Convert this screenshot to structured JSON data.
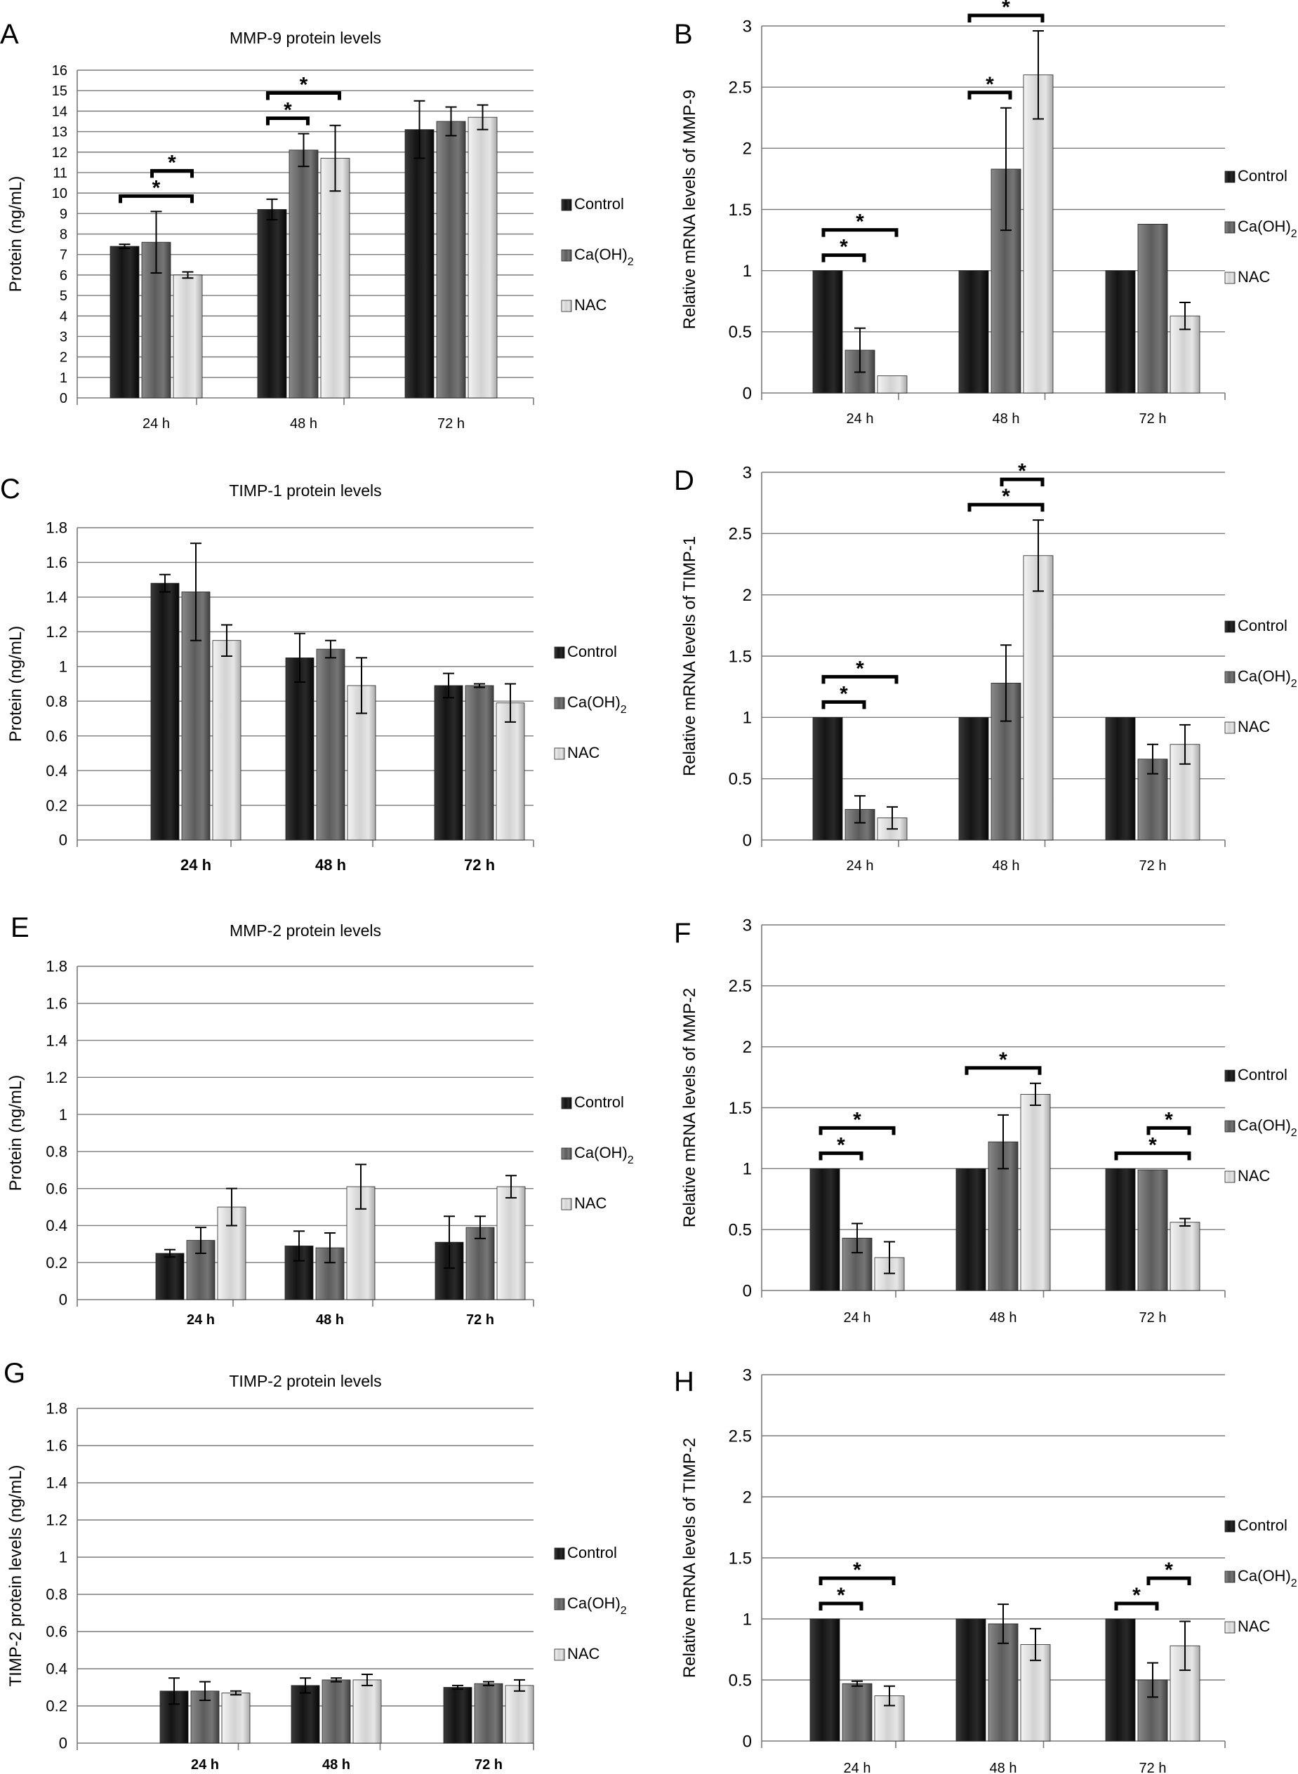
{
  "colors": {
    "Control": "#1f1f1f",
    "Ca(OH)2": "#6e6e6e",
    "NAC": "#d4d4d4",
    "grid": "#7a7a7a"
  },
  "icons": {
    "legend_swatch": "square-swatch-icon",
    "significance": "bracket-asterisk-icon"
  },
  "chart_data": [
    {
      "panel": "A",
      "type": "bar",
      "title": "MMP-9 protein levels",
      "xlabel": "",
      "ylabel": "Protein (ng/mL)",
      "ylim": [
        0,
        16
      ],
      "yticks": [
        "0",
        "1",
        "2",
        "3",
        "4",
        "5",
        "6",
        "7",
        "8",
        "9",
        "10",
        "11",
        "12",
        "13",
        "14",
        "15",
        "16"
      ],
      "categories": [
        "24 h",
        "48 h",
        "72 h"
      ],
      "series": [
        {
          "name": "Control",
          "legend_label": "Control",
          "values": [
            7.4,
            9.2,
            13.1
          ],
          "errors": [
            0.1,
            0.5,
            1.4
          ]
        },
        {
          "name": "Ca(OH)2",
          "legend_label": "Ca(OH)",
          "legend_sub": "2",
          "values": [
            7.6,
            12.1,
            13.5
          ],
          "errors": [
            1.5,
            0.8,
            0.7
          ]
        },
        {
          "name": "NAC",
          "legend_label": "NAC",
          "values": [
            6.0,
            11.7,
            13.7
          ],
          "errors": [
            0.15,
            1.6,
            0.6
          ]
        }
      ],
      "significance": [
        {
          "category": 0,
          "from": 0,
          "to": 2,
          "label": "*"
        },
        {
          "category": 0,
          "from": 1,
          "to": 2,
          "label": "*"
        },
        {
          "category": 1,
          "from": 0,
          "to": 1,
          "label": "*"
        },
        {
          "category": 1,
          "from": 0,
          "to": 2,
          "label": "*"
        }
      ],
      "grid": true,
      "legend": "right"
    },
    {
      "panel": "B",
      "type": "bar",
      "title": "",
      "xlabel": "",
      "ylabel": "Relative mRNA levels of MMP-9",
      "ylim": [
        0,
        3
      ],
      "yticks": [
        "0",
        "0.5",
        "1",
        "1.5",
        "2",
        "2.5",
        "3"
      ],
      "categories": [
        "24 h",
        "48 h",
        "72 h"
      ],
      "series": [
        {
          "name": "Control",
          "legend_label": "Control",
          "values": [
            1.0,
            1.0,
            1.0
          ],
          "errors": [
            0,
            0,
            0
          ]
        },
        {
          "name": "Ca(OH)2",
          "legend_label": "Ca(OH)",
          "legend_sub": "2",
          "values": [
            0.35,
            1.83,
            1.38
          ],
          "errors": [
            0.18,
            0.5,
            0
          ]
        },
        {
          "name": "NAC",
          "legend_label": "NAC",
          "values": [
            0.14,
            2.6,
            0.63
          ],
          "errors": [
            0,
            0.36,
            0.11
          ]
        }
      ],
      "significance": [
        {
          "category": 0,
          "from": 0,
          "to": 1,
          "label": "*"
        },
        {
          "category": 0,
          "from": 0,
          "to": 2,
          "label": "*"
        },
        {
          "category": 1,
          "from": 0,
          "to": 1,
          "label": "*"
        },
        {
          "category": 1,
          "from": 0,
          "to": 2,
          "label": "*"
        }
      ],
      "grid": true,
      "legend": "right"
    },
    {
      "panel": "C",
      "type": "bar",
      "title": "TIMP-1 protein levels",
      "xlabel": "",
      "ylabel": "Protein (ng/mL)",
      "ylim": [
        0,
        1.8
      ],
      "yticks": [
        "0",
        "0.2",
        "0.4",
        "0.6",
        "0.8",
        "1",
        "1.2",
        "1.4",
        "1.6",
        "1.8"
      ],
      "categories": [
        "24 h",
        "48 h",
        "72 h"
      ],
      "series": [
        {
          "name": "Control",
          "legend_label": "Control",
          "values": [
            1.48,
            1.05,
            0.89
          ],
          "errors": [
            0.05,
            0.14,
            0.07
          ]
        },
        {
          "name": "Ca(OH)2",
          "legend_label": "Ca(OH)",
          "legend_sub": "2",
          "values": [
            1.43,
            1.1,
            0.89
          ],
          "errors": [
            0.28,
            0.05,
            0.01
          ]
        },
        {
          "name": "NAC",
          "legend_label": "NAC",
          "values": [
            1.15,
            0.89,
            0.79
          ],
          "errors": [
            0.09,
            0.16,
            0.11
          ]
        }
      ],
      "significance": [],
      "grid": true,
      "legend": "right"
    },
    {
      "panel": "D",
      "type": "bar",
      "title": "",
      "xlabel": "",
      "ylabel": "Relative mRNA levels of TIMP-1",
      "ylim": [
        0,
        3
      ],
      "yticks": [
        "0",
        "0.5",
        "1",
        "1.5",
        "2",
        "2.5",
        "3"
      ],
      "categories": [
        "24 h",
        "48 h",
        "72 h"
      ],
      "series": [
        {
          "name": "Control",
          "legend_label": "Control",
          "values": [
            1.0,
            1.0,
            1.0
          ],
          "errors": [
            0,
            0,
            0
          ]
        },
        {
          "name": "Ca(OH)2",
          "legend_label": "Ca(OH)",
          "legend_sub": "2",
          "values": [
            0.25,
            1.28,
            0.66
          ],
          "errors": [
            0.11,
            0.31,
            0.12
          ]
        },
        {
          "name": "NAC",
          "legend_label": "NAC",
          "values": [
            0.18,
            2.32,
            0.78
          ],
          "errors": [
            0.09,
            0.29,
            0.16
          ]
        }
      ],
      "significance": [
        {
          "category": 0,
          "from": 0,
          "to": 1,
          "label": "*"
        },
        {
          "category": 0,
          "from": 0,
          "to": 2,
          "label": "*"
        },
        {
          "category": 1,
          "from": 0,
          "to": 2,
          "label": "*"
        },
        {
          "category": 1,
          "from": 1,
          "to": 2,
          "label": "*"
        }
      ],
      "grid": true,
      "legend": "right"
    },
    {
      "panel": "E",
      "type": "bar",
      "title": "MMP-2 protein levels",
      "xlabel": "",
      "ylabel": "Protein (ng/mL)",
      "ylim": [
        0,
        1.8
      ],
      "yticks": [
        "0",
        "0.2",
        "0.4",
        "0.6",
        "0.8",
        "1",
        "1.2",
        "1.4",
        "1.6",
        "1.8"
      ],
      "categories": [
        "24 h",
        "48 h",
        "72 h"
      ],
      "series": [
        {
          "name": "Control",
          "legend_label": "Control",
          "values": [
            0.25,
            0.29,
            0.31
          ],
          "errors": [
            0.02,
            0.08,
            0.14
          ]
        },
        {
          "name": "Ca(OH)2",
          "legend_label": "Ca(OH)",
          "legend_sub": "2",
          "values": [
            0.32,
            0.28,
            0.39
          ],
          "errors": [
            0.07,
            0.08,
            0.06
          ]
        },
        {
          "name": "NAC",
          "legend_label": "NAC",
          "values": [
            0.5,
            0.61,
            0.61
          ],
          "errors": [
            0.1,
            0.12,
            0.06
          ]
        }
      ],
      "significance": [],
      "grid": true,
      "legend": "right"
    },
    {
      "panel": "F",
      "type": "bar",
      "title": "",
      "xlabel": "",
      "ylabel": "Relative mRNA levels of MMP-2",
      "ylim": [
        0,
        3
      ],
      "yticks": [
        "0",
        "0.5",
        "1",
        "1.5",
        "2",
        "2.5",
        "3"
      ],
      "categories": [
        "24 h",
        "48 h",
        "72 h"
      ],
      "series": [
        {
          "name": "Control",
          "legend_label": "Control",
          "values": [
            1.0,
            1.0,
            1.0
          ],
          "errors": [
            0,
            0,
            0
          ]
        },
        {
          "name": "Ca(OH)2",
          "legend_label": "Ca(OH)",
          "legend_sub": "2",
          "values": [
            0.43,
            1.22,
            0.99
          ],
          "errors": [
            0.12,
            0.22,
            0
          ]
        },
        {
          "name": "NAC",
          "legend_label": "NAC",
          "values": [
            0.27,
            1.61,
            0.56
          ],
          "errors": [
            0.13,
            0.09,
            0.03
          ]
        }
      ],
      "significance": [
        {
          "category": 0,
          "from": 0,
          "to": 1,
          "label": "*"
        },
        {
          "category": 0,
          "from": 0,
          "to": 2,
          "label": "*"
        },
        {
          "category": 1,
          "from": 0,
          "to": 2,
          "label": "*"
        },
        {
          "category": 2,
          "from": 0,
          "to": 2,
          "label": "*"
        },
        {
          "category": 2,
          "from": 1,
          "to": 2,
          "label": "*"
        }
      ],
      "grid": true,
      "legend": "right"
    },
    {
      "panel": "G",
      "type": "bar",
      "title": "TIMP-2 protein levels",
      "xlabel": "",
      "ylabel": "TIMP-2 protein levels (ng/mL)",
      "ylim": [
        0,
        1.8
      ],
      "yticks": [
        "0",
        "0.2",
        "0.4",
        "0.6",
        "0.8",
        "1",
        "1.2",
        "1.4",
        "1.6",
        "1.8"
      ],
      "categories": [
        "24 h",
        "48 h",
        "72 h"
      ],
      "series": [
        {
          "name": "Control",
          "legend_label": "Control",
          "values": [
            0.28,
            0.31,
            0.3
          ],
          "errors": [
            0.07,
            0.04,
            0.01
          ]
        },
        {
          "name": "Ca(OH)2",
          "legend_label": "Ca(OH)",
          "legend_sub": "2",
          "values": [
            0.28,
            0.34,
            0.32
          ],
          "errors": [
            0.05,
            0.01,
            0.01
          ]
        },
        {
          "name": "NAC",
          "legend_label": "NAC",
          "values": [
            0.27,
            0.34,
            0.31
          ],
          "errors": [
            0.01,
            0.03,
            0.03
          ]
        }
      ],
      "significance": [],
      "grid": true,
      "legend": "right"
    },
    {
      "panel": "H",
      "type": "bar",
      "title": "",
      "xlabel": "",
      "ylabel": "Relative mRNA levels of TIMP-2",
      "ylim": [
        0,
        3
      ],
      "yticks": [
        "0",
        "0.5",
        "1",
        "1.5",
        "2",
        "2.5",
        "3"
      ],
      "categories": [
        "24 h",
        "48 h",
        "72 h"
      ],
      "series": [
        {
          "name": "Control",
          "legend_label": "Control",
          "values": [
            1.0,
            1.0,
            1.0
          ],
          "errors": [
            0,
            0,
            0
          ]
        },
        {
          "name": "Ca(OH)2",
          "legend_label": "Ca(OH)",
          "legend_sub": "2",
          "values": [
            0.47,
            0.96,
            0.5
          ],
          "errors": [
            0.02,
            0.16,
            0.14
          ]
        },
        {
          "name": "NAC",
          "legend_label": "NAC",
          "values": [
            0.37,
            0.79,
            0.78
          ],
          "errors": [
            0.08,
            0.13,
            0.2
          ]
        }
      ],
      "significance": [
        {
          "category": 0,
          "from": 0,
          "to": 1,
          "label": "*"
        },
        {
          "category": 0,
          "from": 0,
          "to": 2,
          "label": "*"
        },
        {
          "category": 2,
          "from": 0,
          "to": 1,
          "label": "*"
        },
        {
          "category": 2,
          "from": 1,
          "to": 2,
          "label": "*"
        }
      ],
      "grid": true,
      "legend": "right"
    }
  ]
}
